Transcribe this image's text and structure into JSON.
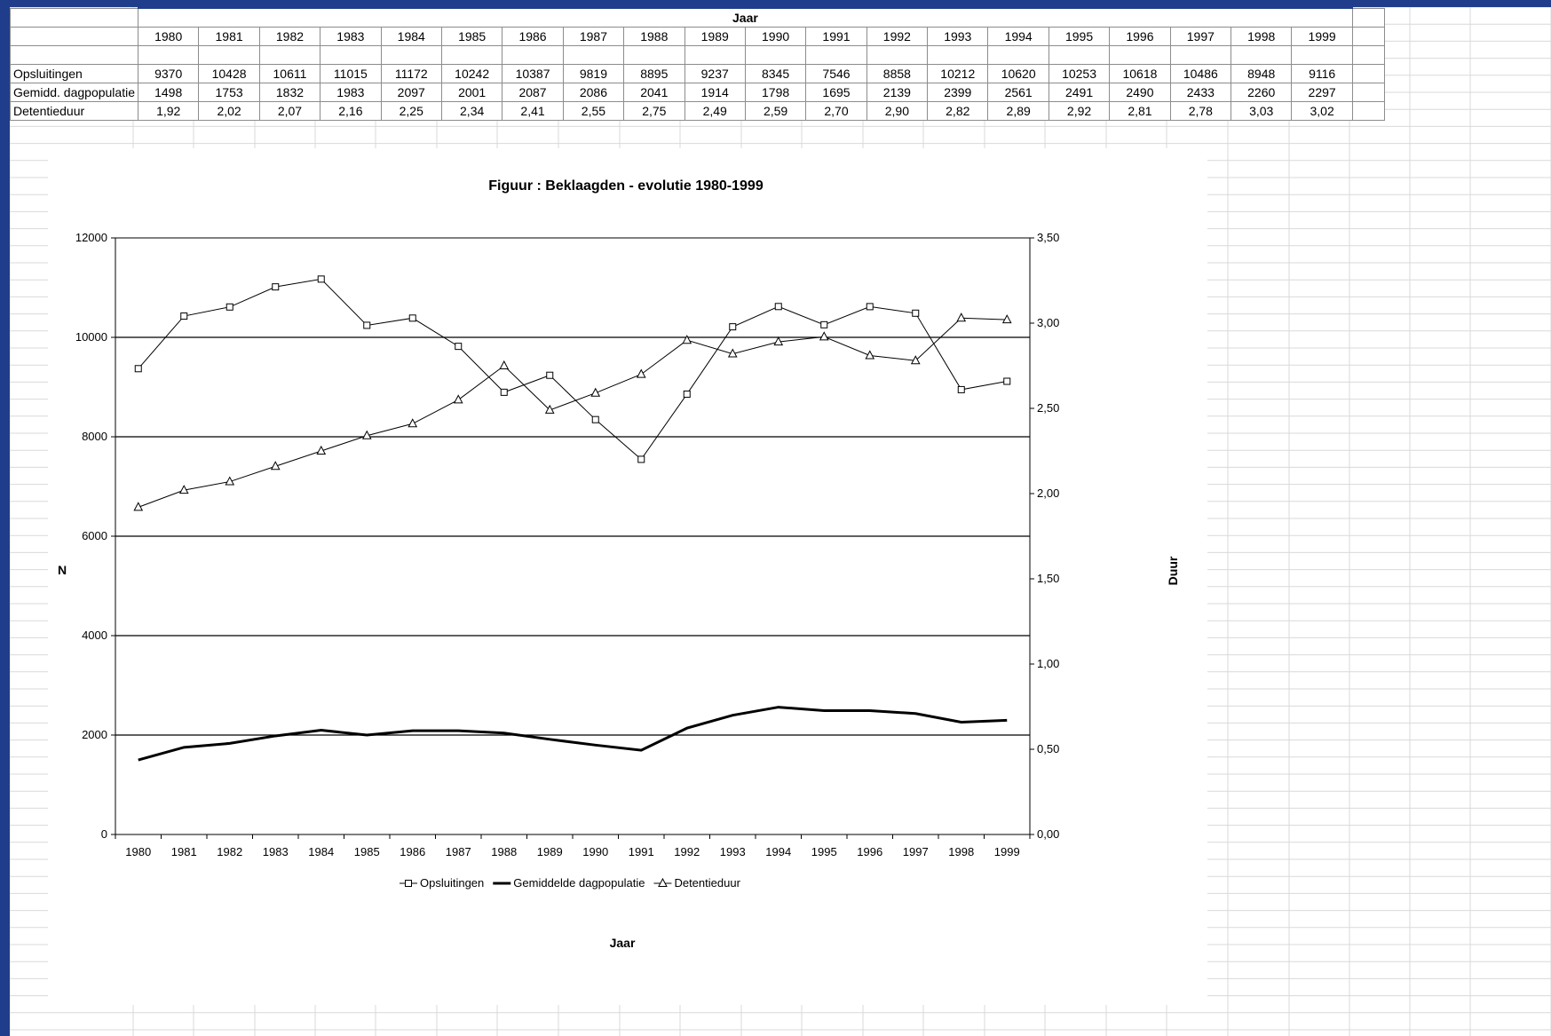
{
  "sheet": {
    "header_label": "Jaar",
    "years": [
      "1980",
      "1981",
      "1982",
      "1983",
      "1984",
      "1985",
      "1986",
      "1987",
      "1988",
      "1989",
      "1990",
      "1991",
      "1992",
      "1993",
      "1994",
      "1995",
      "1996",
      "1997",
      "1998",
      "1999"
    ],
    "rows": [
      {
        "label": "Opsluitingen",
        "values": [
          "9370",
          "10428",
          "10611",
          "11015",
          "11172",
          "10242",
          "10387",
          "9819",
          "8895",
          "9237",
          "8345",
          "7546",
          "8858",
          "10212",
          "10620",
          "10253",
          "10618",
          "10486",
          "8948",
          "9116"
        ]
      },
      {
        "label": "Gemidd. dagpopulatie",
        "values": [
          "1498",
          "1753",
          "1832",
          "1983",
          "2097",
          "2001",
          "2087",
          "2086",
          "2041",
          "1914",
          "1798",
          "1695",
          "2139",
          "2399",
          "2561",
          "2491",
          "2490",
          "2433",
          "2260",
          "2297"
        ]
      },
      {
        "label": "Detentieduur",
        "values": [
          "1,92",
          "2,02",
          "2,07",
          "2,16",
          "2,25",
          "2,34",
          "2,41",
          "2,55",
          "2,75",
          "2,49",
          "2,59",
          "2,70",
          "2,90",
          "2,82",
          "2,89",
          "2,92",
          "2,81",
          "2,78",
          "3,03",
          "3,02"
        ]
      }
    ]
  },
  "chart_data": {
    "type": "line",
    "title": "Figuur : Beklaagden - evolutie 1980-1999",
    "xlabel": "Jaar",
    "ylabel": "N",
    "y2label": "Duur",
    "categories": [
      "1980",
      "1981",
      "1982",
      "1983",
      "1984",
      "1985",
      "1986",
      "1987",
      "1988",
      "1989",
      "1990",
      "1991",
      "1992",
      "1993",
      "1994",
      "1995",
      "1996",
      "1997",
      "1998",
      "1999"
    ],
    "ylim": [
      0,
      12000
    ],
    "y_ticks": [
      "0",
      "2000",
      "4000",
      "6000",
      "8000",
      "10000",
      "12000"
    ],
    "y2lim": [
      0,
      3.5
    ],
    "y2_ticks": [
      "0,00",
      "0,50",
      "1,00",
      "1,50",
      "2,00",
      "2,50",
      "3,00",
      "3,50"
    ],
    "gridlines": "horizontal at major y ticks",
    "legend_position": "bottom",
    "series": [
      {
        "name": "Opsluitingen",
        "axis": "left",
        "marker": "square",
        "values": [
          9370,
          10428,
          10611,
          11015,
          11172,
          10242,
          10387,
          9819,
          8895,
          9237,
          8345,
          7546,
          8858,
          10212,
          10620,
          10253,
          10618,
          10486,
          8948,
          9116
        ]
      },
      {
        "name": "Gemiddelde dagpopulatie",
        "axis": "left",
        "marker": "none",
        "values": [
          1498,
          1753,
          1832,
          1983,
          2097,
          2001,
          2087,
          2086,
          2041,
          1914,
          1798,
          1695,
          2139,
          2399,
          2561,
          2491,
          2490,
          2433,
          2260,
          2297
        ]
      },
      {
        "name": "Detentieduur",
        "axis": "right",
        "marker": "triangle",
        "values": [
          1.92,
          2.02,
          2.07,
          2.16,
          2.25,
          2.34,
          2.41,
          2.55,
          2.75,
          2.49,
          2.59,
          2.7,
          2.9,
          2.82,
          2.89,
          2.92,
          2.81,
          2.78,
          3.03,
          3.02
        ]
      }
    ]
  },
  "colors": {
    "frame": "#1f3d8a",
    "gridline": "#c8c8c8",
    "line": "#000000"
  }
}
